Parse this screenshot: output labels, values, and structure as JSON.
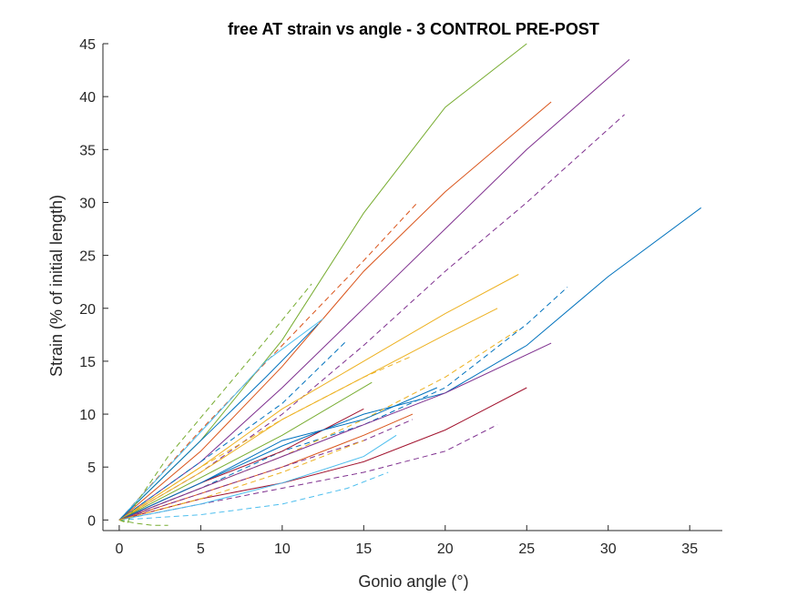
{
  "chart_data": {
    "type": "line",
    "title": "free AT strain vs angle - 3 CONTROL PRE-POST",
    "xlabel": "Gonio angle (°)",
    "ylabel": "Strain (% of initial length)",
    "xlim": [
      -1,
      37
    ],
    "ylim": [
      -1,
      45
    ],
    "xticks": [
      0,
      5,
      10,
      15,
      20,
      25,
      30,
      35
    ],
    "yticks": [
      0,
      5,
      10,
      15,
      20,
      25,
      30,
      35,
      40,
      45
    ],
    "grid": false,
    "series": [
      {
        "name": "green solid",
        "color": "#77ac30",
        "style": "solid",
        "x": [
          0,
          5,
          10,
          15,
          20,
          25
        ],
        "y": [
          0,
          7.5,
          17,
          29,
          39,
          45
        ]
      },
      {
        "name": "orange-red solid",
        "color": "#d95319",
        "style": "solid",
        "x": [
          0,
          5,
          10,
          15,
          20,
          26.5
        ],
        "y": [
          0,
          6.5,
          14.5,
          23.5,
          31,
          39.5
        ]
      },
      {
        "name": "purple solid top",
        "color": "#7e2f8e",
        "style": "solid",
        "x": [
          0,
          5,
          10,
          15,
          20,
          25,
          31.3
        ],
        "y": [
          0,
          5.5,
          12.5,
          20,
          27.5,
          35,
          43.5
        ]
      },
      {
        "name": "purple dashed top",
        "color": "#7e2f8e",
        "style": "dashed",
        "x": [
          0,
          5,
          10,
          15,
          20,
          25,
          31
        ],
        "y": [
          0,
          4.5,
          10,
          16.5,
          23.5,
          30,
          38.3
        ]
      },
      {
        "name": "orange-red dashed",
        "color": "#d95319",
        "style": "dashed",
        "x": [
          0,
          5,
          10,
          15,
          18.3
        ],
        "y": [
          0,
          8.5,
          16.5,
          24.5,
          30
        ]
      },
      {
        "name": "blue solid long",
        "color": "#0072bd",
        "style": "solid",
        "x": [
          0,
          5,
          10,
          15,
          20,
          25,
          30,
          35.7
        ],
        "y": [
          0,
          3.5,
          7,
          10,
          12,
          16.5,
          23,
          29.5
        ]
      },
      {
        "name": "yellow solid upper",
        "color": "#edb120",
        "style": "solid",
        "x": [
          0,
          5,
          10,
          15,
          20,
          24.5
        ],
        "y": [
          0,
          5,
          10.5,
          15,
          19.5,
          23.2
        ]
      },
      {
        "name": "yellow solid",
        "color": "#edb120",
        "style": "solid",
        "x": [
          0,
          5,
          10,
          15,
          20,
          23.2
        ],
        "y": [
          0,
          4.5,
          9.5,
          13.5,
          17.5,
          20
        ]
      },
      {
        "name": "blue dashed long",
        "color": "#0072bd",
        "style": "dashed",
        "x": [
          0,
          5,
          10,
          15,
          20,
          25,
          27.5
        ],
        "y": [
          0,
          3,
          6.5,
          9,
          12.5,
          18.5,
          22
        ]
      },
      {
        "name": "yellow dashed mid",
        "color": "#edb120",
        "style": "dashed",
        "x": [
          0,
          5,
          10,
          15,
          20,
          24.5
        ],
        "y": [
          0,
          3,
          6,
          9.5,
          13.5,
          18
        ]
      },
      {
        "name": "purple solid mid",
        "color": "#7e2f8e",
        "style": "solid",
        "x": [
          0,
          5,
          10,
          15,
          20,
          26.5
        ],
        "y": [
          0,
          3,
          6,
          9,
          12,
          16.7
        ]
      },
      {
        "name": "red solid low",
        "color": "#a2142f",
        "style": "solid",
        "x": [
          0,
          5,
          10,
          15,
          20,
          25
        ],
        "y": [
          0,
          2,
          3.5,
          5.5,
          8.5,
          12.5
        ]
      },
      {
        "name": "purple dashed low",
        "color": "#7e2f8e",
        "style": "dashed",
        "x": [
          0,
          5,
          10,
          15,
          20,
          23.2
        ],
        "y": [
          0,
          1.5,
          3,
          4.5,
          6.5,
          9
        ]
      },
      {
        "name": "cyan dashed lowest",
        "color": "#4dbeee",
        "style": "dashed",
        "x": [
          0,
          5,
          10,
          14,
          16.5
        ],
        "y": [
          0,
          0.5,
          1.5,
          3,
          4.5
        ]
      },
      {
        "name": "cyan solid low",
        "color": "#4dbeee",
        "style": "solid",
        "x": [
          0,
          5,
          10,
          15,
          17
        ],
        "y": [
          0,
          1.5,
          3.5,
          6,
          8
        ]
      },
      {
        "name": "cyan solid steep",
        "color": "#4dbeee",
        "style": "solid",
        "x": [
          0,
          3,
          6,
          9,
          12.5
        ],
        "y": [
          0,
          5,
          10,
          15,
          19
        ]
      },
      {
        "name": "blue solid steep",
        "color": "#0072bd",
        "style": "solid",
        "x": [
          0,
          3,
          6,
          9,
          12.2
        ],
        "y": [
          0,
          4.5,
          9,
          13.5,
          18.5
        ]
      },
      {
        "name": "green dashed steep",
        "color": "#77ac30",
        "style": "dashed",
        "x": [
          0,
          0.5,
          1,
          3,
          6,
          9,
          11.8
        ],
        "y": [
          0,
          -0.3,
          1.5,
          6,
          11.5,
          17,
          22.3
        ]
      },
      {
        "name": "green dashed dip",
        "color": "#77ac30",
        "style": "dashed",
        "x": [
          0,
          1,
          2,
          3
        ],
        "y": [
          0,
          -0.3,
          -0.5,
          -0.5
        ]
      },
      {
        "name": "blue dashed mid",
        "color": "#0072bd",
        "style": "dashed",
        "x": [
          0,
          5,
          10,
          14
        ],
        "y": [
          0,
          5.5,
          11,
          17
        ]
      },
      {
        "name": "orange dashed mid",
        "color": "#edb120",
        "style": "dashed",
        "x": [
          0,
          5,
          10,
          15,
          18
        ],
        "y": [
          0,
          5,
          9.5,
          13.5,
          15.5
        ]
      },
      {
        "name": "green solid mid",
        "color": "#77ac30",
        "style": "solid",
        "x": [
          0,
          5,
          10,
          15.5
        ],
        "y": [
          0,
          4,
          8,
          13
        ]
      },
      {
        "name": "red solid mid",
        "color": "#a2142f",
        "style": "solid",
        "x": [
          0,
          5,
          10,
          15
        ],
        "y": [
          0,
          3.5,
          6.5,
          10.5
        ]
      },
      {
        "name": "blue solid mid",
        "color": "#0072bd",
        "style": "solid",
        "x": [
          0,
          5,
          10,
          15,
          19.5
        ],
        "y": [
          0,
          3.5,
          7.5,
          9.5,
          12.5
        ]
      },
      {
        "name": "orange-red solid low",
        "color": "#d95319",
        "style": "solid",
        "x": [
          0,
          5,
          10,
          15,
          18
        ],
        "y": [
          0,
          2.5,
          5,
          8,
          10
        ]
      },
      {
        "name": "purple dashed mid",
        "color": "#7e2f8e",
        "style": "dashed",
        "x": [
          0,
          5,
          10,
          15,
          18
        ],
        "y": [
          0,
          2.5,
          5,
          7.5,
          9.5
        ]
      },
      {
        "name": "orange dashed low",
        "color": "#edb120",
        "style": "dashed",
        "x": [
          0,
          5,
          10,
          15
        ],
        "y": [
          0,
          2,
          4.5,
          7.5
        ]
      }
    ]
  }
}
